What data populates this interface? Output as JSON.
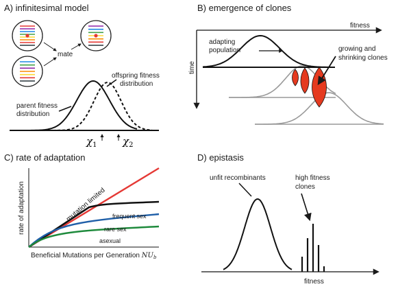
{
  "panels": {
    "a": {
      "title": "A) infinitesimal model",
      "mate": "mate",
      "parent_dist": [
        "parent fitness",
        "distribution"
      ],
      "offspring_dist": [
        "offspring fitness",
        "distribution"
      ],
      "chi1": "χ",
      "chi1_sub": "1",
      "chi2": "χ",
      "chi2_sub": "2",
      "stripes_top": [
        "#e53935",
        "#8e24aa",
        "#1e88e5",
        "#43a047",
        "#fdd835",
        "#fb8c00",
        "#e53935",
        "#263238"
      ],
      "stripes_bottom": [
        "#1e88e5",
        "#43a047",
        "#8e24aa",
        "#fb8c00",
        "#fdd835",
        "#e53935",
        "#263238"
      ],
      "stripes_child": [
        "#8e24aa",
        "#1e88e5",
        "#43a047",
        "#fdd835",
        "#fb8c00",
        "#e53935",
        "#263238"
      ]
    },
    "b": {
      "title": "B) emergence of clones",
      "x_label": "fitness",
      "y_label": "time",
      "adapting": [
        "adapting",
        "population"
      ],
      "clones": [
        "growing and",
        "shrinking clones"
      ],
      "clone_color": "#e53a1f"
    },
    "c": {
      "title": "C) rate of adaptation",
      "y_label": "rate of adaptation",
      "x_label": "Beneficial Mutations per Generation",
      "x_math": "NU",
      "x_math_sub": "b",
      "labels": {
        "mutation_limited": "mutation limited",
        "frequent_sex": "frequent sex",
        "rare_sex": "rare sex",
        "asexual": "asexual"
      },
      "colors": {
        "mutation_limited": "#e53935",
        "frequent_sex": "#111111",
        "rare_sex": "#1f5fa8",
        "asexual": "#1e8a3c"
      }
    },
    "d": {
      "title": "D) epistasis",
      "unfit": "unfit recombinants",
      "high_fit": [
        "high fitness",
        "clones"
      ],
      "x_label": "fitness"
    }
  }
}
